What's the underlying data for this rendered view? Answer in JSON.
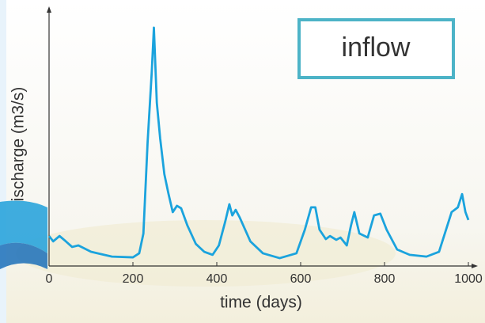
{
  "chart_data": {
    "type": "line",
    "x_label": "time (days)",
    "y_label": "ischarge (m3/s)",
    "x": [
      0,
      10,
      25,
      40,
      55,
      70,
      100,
      150,
      200,
      215,
      225,
      235,
      245,
      250,
      257,
      265,
      275,
      285,
      295,
      305,
      315,
      330,
      350,
      370,
      390,
      405,
      420,
      430,
      437,
      445,
      455,
      480,
      510,
      550,
      590,
      610,
      625,
      635,
      645,
      660,
      670,
      685,
      695,
      710,
      720,
      728,
      740,
      760,
      775,
      790,
      805,
      830,
      860,
      900,
      930,
      960,
      975,
      985,
      993,
      1000
    ],
    "series": [
      {
        "name": "inflow",
        "color": "#1ba3dd",
        "values": [
          11.8,
          9.7,
          11.8,
          9.7,
          7.5,
          8.1,
          5.6,
          3.7,
          3.4,
          5,
          12.8,
          48.6,
          76.6,
          93.8,
          64.2,
          50.2,
          36.1,
          28.3,
          21.2,
          23.7,
          22.7,
          15.9,
          8.7,
          5.6,
          4.4,
          8.1,
          17.4,
          24.3,
          19.9,
          22.1,
          19,
          9.7,
          5,
          3.1,
          5,
          14.3,
          23.1,
          23.1,
          14.3,
          10.6,
          11.8,
          10.3,
          11.2,
          8.1,
          15.9,
          21.2,
          12.8,
          11.2,
          19.9,
          20.6,
          14.3,
          6.5,
          4.4,
          3.7,
          5.6,
          21.2,
          23.1,
          28.3,
          21.2,
          18.1
        ]
      }
    ],
    "xlim": [
      0,
      1000
    ],
    "xticks": [
      0,
      200,
      400,
      600,
      800,
      1000
    ],
    "ylim": [
      0,
      100
    ]
  }
}
